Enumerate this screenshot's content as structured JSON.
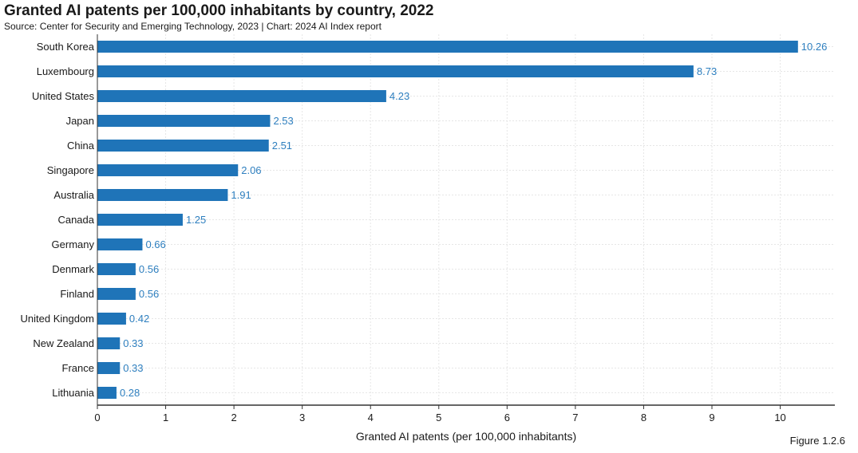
{
  "title": "Granted AI patents per 100,000 inhabitants by country, 2022",
  "subtitle": "Source: Center for Security and Emerging Technology, 2023 | Chart: 2024 AI Index report",
  "figure_label": "Figure 1.2.6",
  "colors": {
    "bar": "#1f74b8",
    "value_label": "#2e7fbf",
    "grid": "#e6e6e6",
    "axis": "#333333"
  },
  "chart_data": {
    "type": "bar",
    "orientation": "horizontal",
    "categories": [
      "South Korea",
      "Luxembourg",
      "United States",
      "Japan",
      "China",
      "Singapore",
      "Australia",
      "Canada",
      "Germany",
      "Denmark",
      "Finland",
      "United Kingdom",
      "New Zealand",
      "France",
      "Lithuania"
    ],
    "values": [
      10.26,
      8.73,
      4.23,
      2.53,
      2.51,
      2.06,
      1.91,
      1.25,
      0.66,
      0.56,
      0.56,
      0.42,
      0.33,
      0.33,
      0.28
    ],
    "value_labels": [
      "10.26",
      "8.73",
      "4.23",
      "2.53",
      "2.51",
      "2.06",
      "1.91",
      "1.25",
      "0.66",
      "0.56",
      "0.56",
      "0.42",
      "0.33",
      "0.33",
      "0.28"
    ],
    "xlabel": "Granted AI patents (per 100,000 inhabitants)",
    "ylabel": "",
    "xlim": [
      0,
      10.8
    ],
    "xticks": [
      "0",
      "1",
      "2",
      "3",
      "4",
      "5",
      "6",
      "7",
      "8",
      "9",
      "10"
    ],
    "grid": true,
    "legend": "none"
  }
}
